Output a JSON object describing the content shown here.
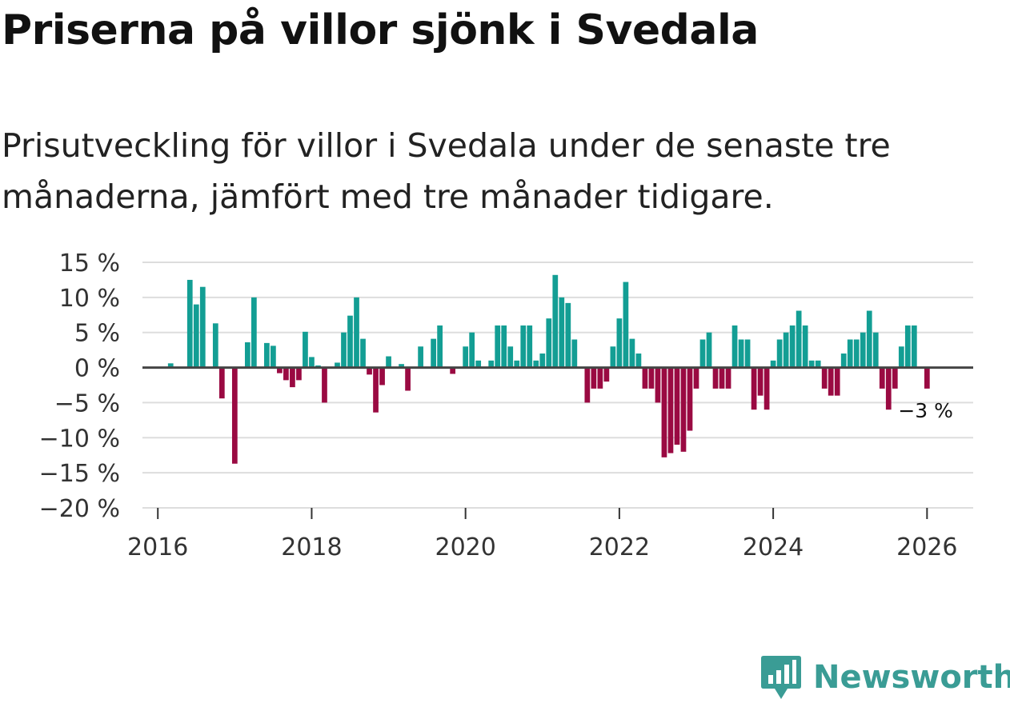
{
  "title": "Priserna på villor sjönk i Svedala",
  "subtitle": "Prisutveckling för villor i Svedala under de senaste tre månaderna, jämfört med tre månader tidigare.",
  "brand": {
    "name": "Newsworthy",
    "icon": "newsworthy-logo-icon",
    "color": "#3a9c95"
  },
  "chart_data": {
    "type": "bar",
    "title": "Priserna på villor sjönk i Svedala",
    "xlabel": "",
    "ylabel": "",
    "ylim": [
      -20,
      15
    ],
    "yticks": [
      15,
      10,
      5,
      0,
      -5,
      -10,
      -15,
      -20
    ],
    "ytick_labels": [
      "15 %",
      "10 %",
      "5 %",
      "0 %",
      "−5 %",
      "−10 %",
      "−15 %",
      "−20 %"
    ],
    "xlim": [
      2015.8,
      2026.6
    ],
    "xticks": [
      2016,
      2018,
      2020,
      2022,
      2024,
      2026
    ],
    "xtick_labels": [
      "2016",
      "2018",
      "2020",
      "2022",
      "2024",
      "2026"
    ],
    "grid": true,
    "positive_color": "#139e94",
    "negative_color": "#9a0a42",
    "zero_line_color": "#444444",
    "start": "2016-01",
    "frequency": "monthly",
    "values": [
      0,
      0,
      0.6,
      0,
      0,
      12.5,
      9,
      11.5,
      0,
      6.3,
      -4.4,
      0,
      -13.7,
      0,
      3.6,
      10,
      0,
      3.5,
      3.1,
      -0.8,
      -1.8,
      -2.8,
      -1.8,
      5.1,
      1.5,
      0.3,
      -5,
      0,
      0.7,
      5,
      7.4,
      10,
      4.1,
      -1,
      -6.4,
      -2.5,
      1.6,
      0,
      0.5,
      -3.3,
      0,
      3,
      0,
      4.1,
      6,
      0,
      -0.9,
      0,
      3,
      5,
      1,
      0,
      1,
      6,
      6,
      3,
      1,
      6,
      6,
      1,
      2,
      7,
      13.2,
      10,
      9.2,
      4,
      0,
      -5,
      -3,
      -3,
      -2,
      3,
      7,
      12.2,
      4.1,
      2,
      -3,
      -3,
      -5,
      -12.8,
      -12.2,
      -11,
      -12,
      -9,
      -3,
      4,
      5,
      -3,
      -3,
      -3,
      6,
      4,
      4,
      -6,
      -4,
      -6,
      1,
      4,
      5,
      6,
      8.1,
      6,
      1,
      1,
      -3,
      -4,
      -4,
      2,
      4,
      4,
      5,
      8.1,
      5,
      -3,
      -6,
      -3,
      3,
      6,
      6,
      0,
      -3
    ],
    "annotation": "−3 %"
  }
}
